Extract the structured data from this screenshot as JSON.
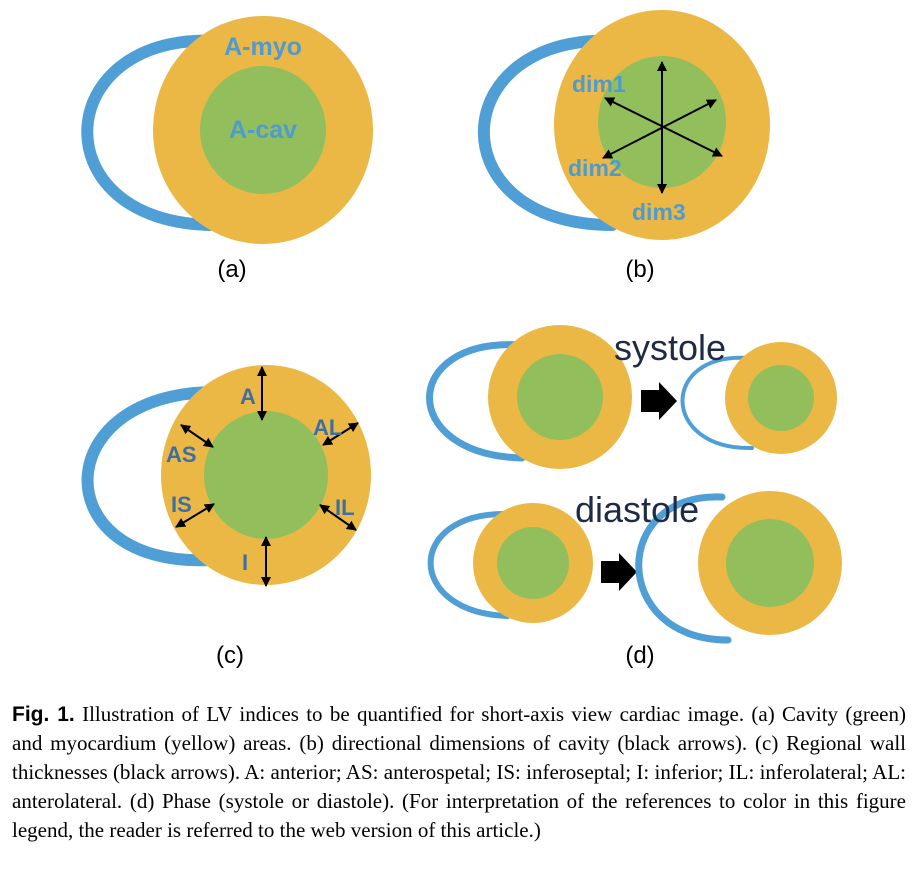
{
  "colors": {
    "rv": "#4f9fd6",
    "myocardium": "#ebb845",
    "cavity": "#92be5c",
    "label_blue": "#4f9bd0",
    "segment_label": "#3d6fa5",
    "arrow": "#000000"
  },
  "panel_a": {
    "tag": "(a)",
    "myo_label": "A-myo",
    "cav_label": "A-cav"
  },
  "panel_b": {
    "tag": "(b)",
    "dims": [
      "dim1",
      "dim2",
      "dim3"
    ]
  },
  "panel_c": {
    "tag": "(c)",
    "segments": [
      "A",
      "AL",
      "AS",
      "IS",
      "IL",
      "I"
    ]
  },
  "panel_d": {
    "tag": "(d)",
    "systole": "systole",
    "diastole": "diastole"
  },
  "caption": {
    "label": "Fig. 1.",
    "text": "Illustration of LV indices to be quantified for short-axis view cardiac image. (a) Cavity (green) and myocardium (yellow) areas. (b) directional dimensions of cavity (black arrows). (c) Regional wall thicknesses (black arrows). A: anterior; AS: anterospetal; IS: inferoseptal; I: inferior; IL: inferolateral; AL: anterolateral. (d) Phase (systole or diastole). (For interpretation of the references to color in this figure legend, the reader is referred to the web version of this article.)"
  }
}
